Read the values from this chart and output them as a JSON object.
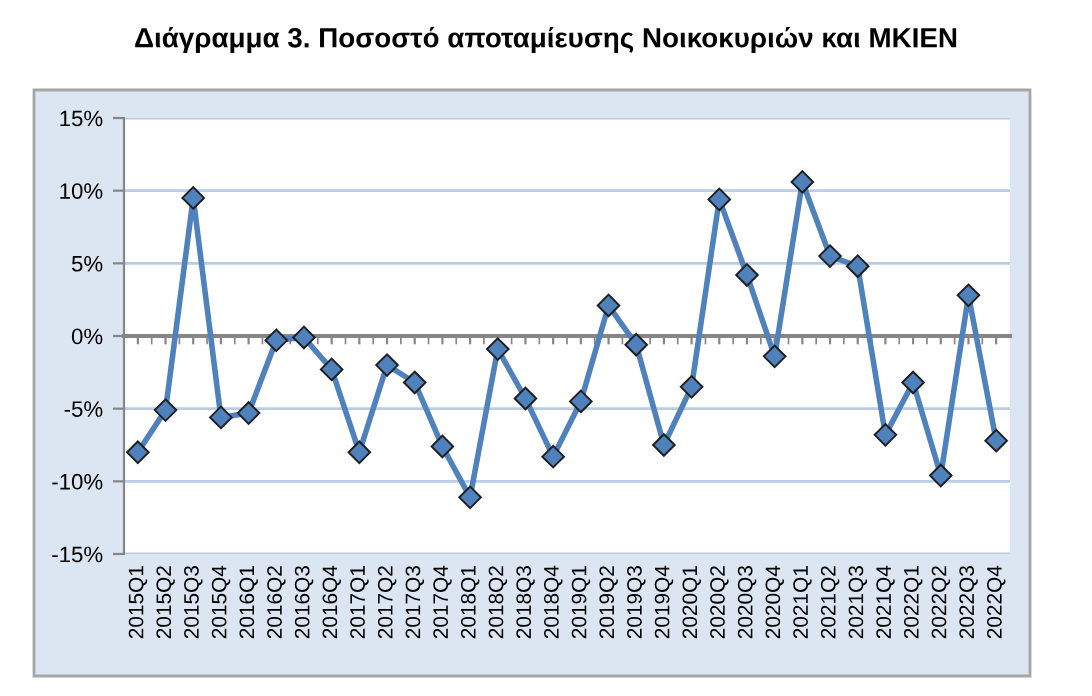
{
  "chart_data": {
    "type": "line",
    "title": "Διάγραμμα 3. Ποσοστό αποταμίευσης Νοικοκυριών και ΜΚΙΕΝ",
    "categories": [
      "2015Q1",
      "2015Q2",
      "2015Q3",
      "2015Q4",
      "2016Q1",
      "2016Q2",
      "2016Q3",
      "2016Q4",
      "2017Q1",
      "2017Q2",
      "2017Q3",
      "2017Q4",
      "2018Q1",
      "2018Q2",
      "2018Q3",
      "2018Q4",
      "2019Q1",
      "2019Q2",
      "2019Q3",
      "2019Q4",
      "2020Q1",
      "2020Q2",
      "2020Q3",
      "2020Q4",
      "2021Q1",
      "2021Q2",
      "2021Q3",
      "2021Q4",
      "2022Q1",
      "2022Q2",
      "2022Q3",
      "2022Q4"
    ],
    "series": [
      {
        "color": "#4f81bd",
        "values": [
          -8.0,
          -5.1,
          9.5,
          -5.6,
          -5.3,
          -0.3,
          -0.1,
          -2.3,
          -8.0,
          -2.0,
          -3.2,
          -7.6,
          -11.1,
          -0.9,
          -4.3,
          -8.3,
          -4.5,
          2.1,
          -0.6,
          -7.5,
          -3.5,
          9.4,
          4.2,
          -1.4,
          10.6,
          5.5,
          4.8,
          -6.8,
          -3.2,
          -9.6,
          2.8,
          -7.2
        ]
      }
    ],
    "ylim": [
      -15,
      15
    ],
    "yticks": [
      {
        "value": -15,
        "label": "-15%"
      },
      {
        "value": -10,
        "label": "-10%"
      },
      {
        "value": -5,
        "label": "-5%"
      },
      {
        "value": 0,
        "label": "0%"
      },
      {
        "value": 5,
        "label": "5%"
      },
      {
        "value": 10,
        "label": "10%"
      },
      {
        "value": 15,
        "label": "15%"
      }
    ],
    "grid": "y",
    "legend": false,
    "marker": "diamond",
    "line_style": "solid"
  }
}
